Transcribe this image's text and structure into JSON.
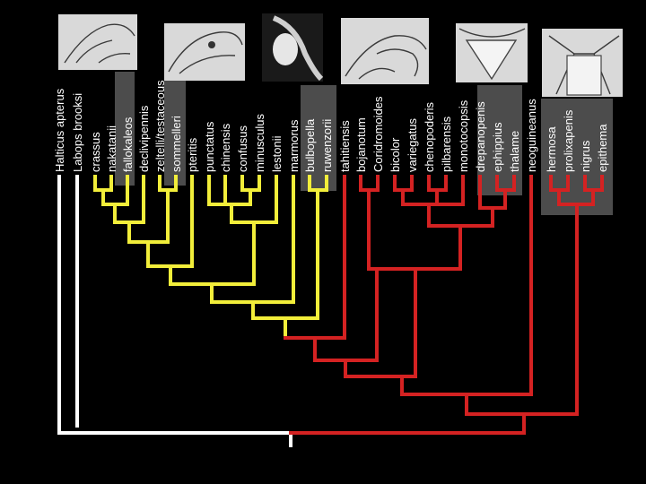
{
  "taxa": [
    "Halticus apterus",
    "Labops brooksi",
    "crassus",
    "nakatanii",
    "fallokaleos",
    "declivipennis",
    "zeltelli/testaceous",
    "sommelleri",
    "pteritis",
    "punctatus",
    "chinensis",
    "confusus",
    "minusculus",
    "lestonii",
    "marmorus",
    "bulbopella",
    "ruwenzorii",
    "tahitiensis",
    "bojanotum",
    "Coridromoides",
    "bicolor",
    "variegatus",
    "chenopoderis",
    "pilbarensis",
    "monotocopsis",
    "drepanopenis",
    "ephippius",
    "thalame",
    "neoguineanus",
    "hermosa",
    "prolixapenis",
    "nigrus",
    "epithema"
  ],
  "colors": {
    "outgroup": "#ffffff",
    "clade_yellow": "#f2ee3a",
    "clade_red": "#d42222",
    "highlight": "#8a8a8a"
  },
  "images": [
    "photo-1",
    "photo-2",
    "photo-3",
    "photo-4",
    "photo-5",
    "photo-6"
  ]
}
